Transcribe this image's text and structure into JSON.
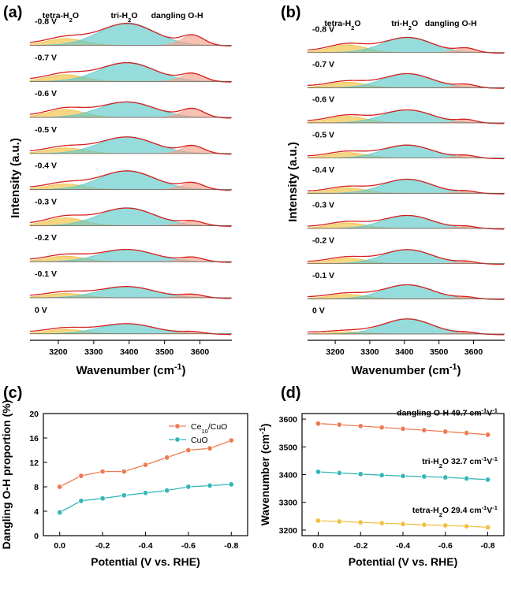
{
  "chart_data": [
    {
      "panel": "(a)",
      "type": "area",
      "xlabel": "Wavenumber (cm-1)",
      "ylabel": "Intensity (a.u.)",
      "xlim": [
        3120,
        3690
      ],
      "xticks": [
        3200,
        3300,
        3400,
        3500,
        3600
      ],
      "peak_labels": [
        "tetra-H2O",
        "tri-H2O",
        "dangling O-H"
      ],
      "components": [
        {
          "name": "tetra-H2O",
          "center": 3220,
          "width": 75,
          "color": "#f0c040"
        },
        {
          "name": "tri-H2O",
          "center": 3395,
          "width": 110,
          "color": "#5fc9c9"
        },
        {
          "name": "dangling O-H",
          "center": 3580,
          "width": 45,
          "color": "#f4a08a"
        }
      ],
      "spectra": [
        {
          "potential": "-0.8 V",
          "tetra": 0.3,
          "tri": 1.0,
          "dangling": 0.45
        },
        {
          "potential": "-0.7 V",
          "tetra": 0.3,
          "tri": 0.85,
          "dangling": 0.35
        },
        {
          "potential": "-0.6 V",
          "tetra": 0.35,
          "tri": 0.7,
          "dangling": 0.4
        },
        {
          "potential": "-0.5 V",
          "tetra": 0.25,
          "tri": 0.75,
          "dangling": 0.35
        },
        {
          "potential": "-0.4 V",
          "tetra": 0.25,
          "tri": 0.85,
          "dangling": 0.3
        },
        {
          "potential": "-0.3 V",
          "tetra": 0.35,
          "tri": 0.8,
          "dangling": 0.2
        },
        {
          "potential": "-0.2 V",
          "tetra": 0.25,
          "tri": 0.55,
          "dangling": 0.2
        },
        {
          "potential": "-0.1 V",
          "tetra": 0.2,
          "tri": 0.5,
          "dangling": 0.15
        },
        {
          "potential": "0 V",
          "tetra": 0.2,
          "tri": 0.45,
          "dangling": 0.1
        }
      ]
    },
    {
      "panel": "(b)",
      "type": "area",
      "xlabel": "Wavenumber (cm-1)",
      "ylabel": "Intensity (a.u.)",
      "xlim": [
        3120,
        3690
      ],
      "xticks": [
        3200,
        3300,
        3400,
        3500,
        3600
      ],
      "peak_labels": [
        "tetra-H2O",
        "tri-H2O",
        "dangling O-H"
      ],
      "components": [
        {
          "name": "tetra-H2O",
          "center": 3235,
          "width": 75,
          "color": "#f0c040"
        },
        {
          "name": "tri-H2O",
          "center": 3410,
          "width": 100,
          "color": "#5fc9c9"
        },
        {
          "name": "dangling O-H",
          "center": 3580,
          "width": 40,
          "color": "#f4a08a"
        }
      ],
      "spectra": [
        {
          "potential": "-0.8 V",
          "tetra": 0.35,
          "tri": 0.7,
          "dangling": 0.2
        },
        {
          "potential": "-0.7 V",
          "tetra": 0.25,
          "tri": 0.65,
          "dangling": 0.15
        },
        {
          "potential": "-0.6 V",
          "tetra": 0.3,
          "tri": 0.6,
          "dangling": 0.15
        },
        {
          "potential": "-0.5 V",
          "tetra": 0.25,
          "tri": 0.6,
          "dangling": 0.12
        },
        {
          "potential": "-0.4 V",
          "tetra": 0.25,
          "tri": 0.65,
          "dangling": 0.1
        },
        {
          "potential": "-0.3 V",
          "tetra": 0.25,
          "tri": 0.6,
          "dangling": 0.1
        },
        {
          "potential": "-0.2 V",
          "tetra": 0.25,
          "tri": 0.65,
          "dangling": 0.1
        },
        {
          "potential": "-0.1 V",
          "tetra": 0.2,
          "tri": 0.65,
          "dangling": 0.08
        },
        {
          "potential": "0 V",
          "tetra": 0.1,
          "tri": 0.7,
          "dangling": 0.08
        }
      ]
    },
    {
      "panel": "(c)",
      "type": "line",
      "xlabel": "Potential (V vs. RHE)",
      "ylabel": "Dangling O-H proportion (%)",
      "xlim": [
        0.0,
        -0.8
      ],
      "ylim": [
        0,
        20
      ],
      "xticks": [
        0.0,
        -0.2,
        -0.4,
        -0.6,
        -0.8
      ],
      "yticks": [
        0,
        4,
        8,
        12,
        16,
        20
      ],
      "x": [
        0.0,
        -0.1,
        -0.2,
        -0.3,
        -0.4,
        -0.5,
        -0.6,
        -0.7,
        -0.8
      ],
      "series": [
        {
          "name": "Ce10/CuO",
          "color": "#ef7b53",
          "values": [
            8.0,
            9.8,
            10.5,
            10.5,
            11.6,
            12.8,
            14.0,
            14.3,
            15.6
          ]
        },
        {
          "name": "CuO",
          "color": "#34b7b6",
          "values": [
            3.8,
            5.7,
            6.1,
            6.6,
            7.0,
            7.4,
            8.0,
            8.2,
            8.4
          ]
        }
      ],
      "legend_position": "top-right"
    },
    {
      "panel": "(d)",
      "type": "line",
      "xlabel": "Potential (V vs. RHE)",
      "ylabel": "Wavenumber (cm-1)",
      "xlim": [
        0.0,
        -0.8
      ],
      "ylim": [
        3180,
        3620
      ],
      "xticks": [
        0.0,
        -0.2,
        -0.4,
        -0.6,
        -0.8
      ],
      "yticks": [
        3200,
        3300,
        3400,
        3500,
        3600
      ],
      "x": [
        0.0,
        -0.1,
        -0.2,
        -0.3,
        -0.4,
        -0.5,
        -0.6,
        -0.7,
        -0.8
      ],
      "series": [
        {
          "name": "dangling O-H",
          "slope_text": "49.7 cm-1V-1",
          "color": "#ef7b53",
          "values": [
            3584,
            3580,
            3575,
            3570,
            3565,
            3560,
            3555,
            3550,
            3544
          ]
        },
        {
          "name": "tri-H2O",
          "slope_text": "32.7 cm-1V-1",
          "color": "#34b7b6",
          "values": [
            3410,
            3406,
            3402,
            3398,
            3395,
            3393,
            3390,
            3386,
            3382
          ]
        },
        {
          "name": "tetra-H2O",
          "slope_text": "29.4 cm-1V-1",
          "color": "#f0c040",
          "values": [
            3234,
            3231,
            3228,
            3225,
            3222,
            3219,
            3217,
            3214,
            3210
          ]
        }
      ]
    }
  ]
}
